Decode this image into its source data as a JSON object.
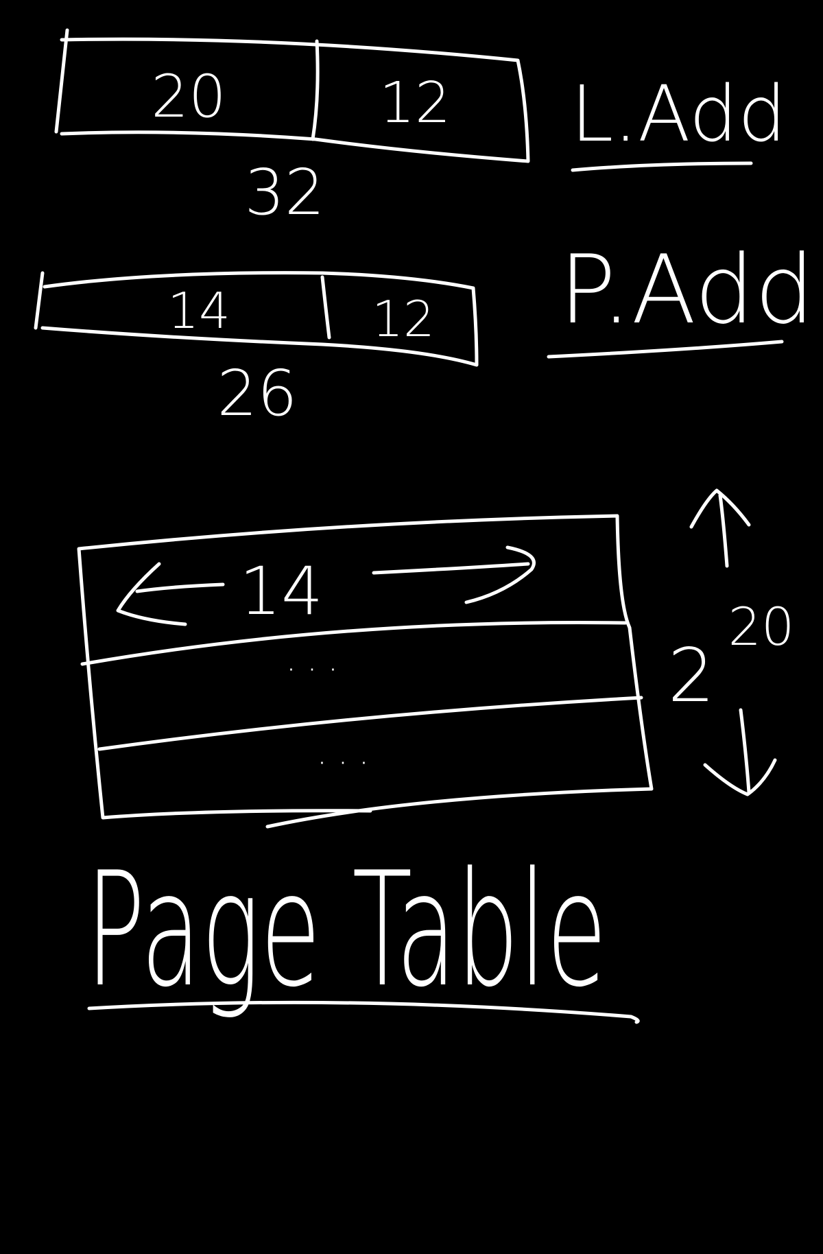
{
  "colors": {
    "background": "#000000",
    "ink": "#ffffff"
  },
  "logical_address": {
    "label": "L.Add",
    "fields": [
      "20",
      "12"
    ],
    "total_bits": "32"
  },
  "physical_address": {
    "label": "P.Add",
    "fields": [
      "14",
      "12"
    ],
    "total_bits": "26"
  },
  "page_table": {
    "label": "Page Table",
    "entry_width": "14",
    "row_placeholders": [
      "· · ·",
      "· · ·"
    ],
    "entries_base": "2",
    "entries_exponent": "20"
  },
  "icons": {
    "width_arrows": [
      "arrow-left-icon",
      "arrow-right-icon"
    ],
    "height_arrows": [
      "arrow-up-icon",
      "arrow-down-icon"
    ]
  }
}
